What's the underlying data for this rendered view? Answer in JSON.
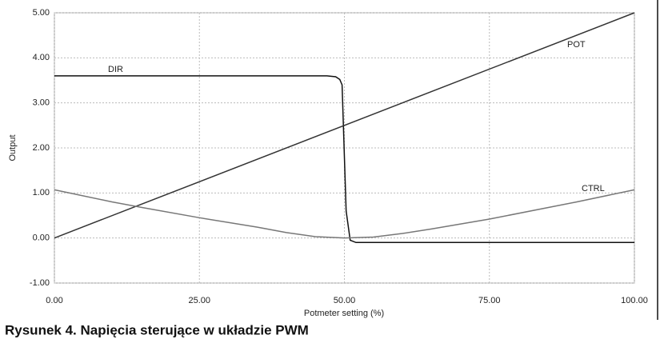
{
  "chart_data": {
    "type": "line",
    "ylabel": "Output",
    "xlabel": "Potmeter setting (%)",
    "xlim": [
      0,
      100
    ],
    "ylim": [
      -1,
      5
    ],
    "xticks": [
      {
        "value": 0,
        "label": "0.00"
      },
      {
        "value": 25,
        "label": "25.00"
      },
      {
        "value": 50,
        "label": "50.00"
      },
      {
        "value": 75,
        "label": "75.00"
      },
      {
        "value": 100,
        "label": "100.00"
      }
    ],
    "yticks": [
      {
        "value": -1,
        "label": "-1.00"
      },
      {
        "value": 0,
        "label": "0.00"
      },
      {
        "value": 1,
        "label": "1.00"
      },
      {
        "value": 2,
        "label": "2.00"
      },
      {
        "value": 3,
        "label": "3.00"
      },
      {
        "value": 4,
        "label": "4.00"
      },
      {
        "value": 5,
        "label": "5.00"
      }
    ],
    "grid": true,
    "series": [
      {
        "name": "DIR",
        "color": "#111111",
        "x": [
          0,
          47,
          48.5,
          49.2,
          49.6,
          50.3,
          51,
          52,
          100
        ],
        "values": [
          3.6,
          3.6,
          3.58,
          3.52,
          3.4,
          0.6,
          -0.05,
          -0.1,
          -0.1
        ]
      },
      {
        "name": "POT",
        "color": "#333333",
        "x": [
          0,
          100
        ],
        "values": [
          0,
          5
        ]
      },
      {
        "name": "CTRL",
        "color": "#777777",
        "x": [
          0,
          10,
          15,
          25,
          35,
          40,
          45,
          50,
          55,
          60,
          65,
          75,
          90,
          100
        ],
        "values": [
          1.07,
          0.8,
          0.68,
          0.45,
          0.24,
          0.12,
          0.03,
          0,
          0.02,
          0.1,
          0.2,
          0.42,
          0.8,
          1.07
        ]
      }
    ]
  },
  "caption": "Rysunek 4. Napięcia sterujące w układzie PWM"
}
